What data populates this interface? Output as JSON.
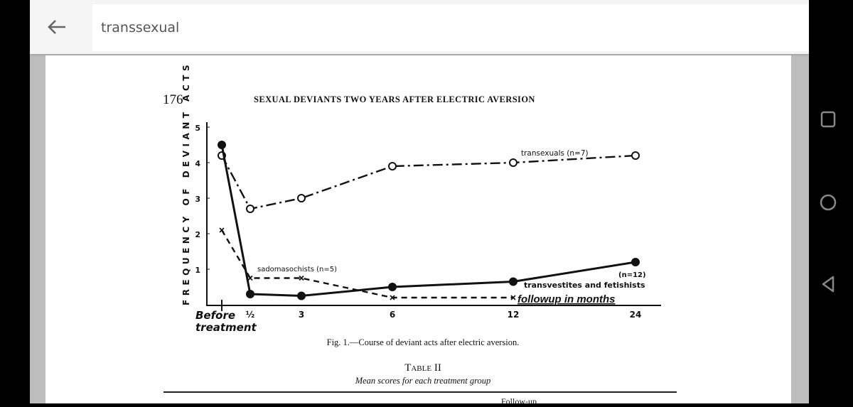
{
  "app_bar": {
    "search_value": "transsexual",
    "back_icon": "arrow-left-icon"
  },
  "system_nav": {
    "icons": [
      "recents-square-icon",
      "home-circle-icon",
      "back-triangle-icon"
    ]
  },
  "document": {
    "page_number": "176",
    "running_head": "SEXUAL DEVIANTS TWO YEARS AFTER ELECTRIC AVERSION",
    "figure_caption": "Fig. 1.—Course of deviant acts after electric aversion.",
    "table_title": "Table II",
    "table_subtitle": "Mean scores for each treatment group",
    "table_partial_header": "Follow-up"
  },
  "chart_data": {
    "type": "line",
    "ylabel": "FREQUENCY OF DEVIANT ACTS",
    "xlabel": "followup in months",
    "x_categories": [
      "Before treatment",
      "½",
      "3",
      "6",
      "12",
      "24"
    ],
    "y_ticks": [
      "1",
      "2",
      "3",
      "4",
      "5"
    ],
    "ylim": [
      0,
      5
    ],
    "grid": false,
    "series": [
      {
        "name": "transexuals (n=7)",
        "style": "dash-dot",
        "marker": "open-circle",
        "values": [
          4.2,
          2.7,
          3.0,
          3.9,
          4.0,
          4.2
        ]
      },
      {
        "name": "transvestites and fetishists",
        "n_label": "(n=12)",
        "style": "solid",
        "marker": "filled-circle",
        "values": [
          4.5,
          0.3,
          0.25,
          0.5,
          0.65,
          1.2
        ]
      },
      {
        "name": "sadomasochists (n=5)",
        "style": "dashed",
        "marker": "x",
        "values": [
          2.1,
          0.75,
          0.75,
          0.2,
          0.2,
          null
        ]
      }
    ]
  }
}
